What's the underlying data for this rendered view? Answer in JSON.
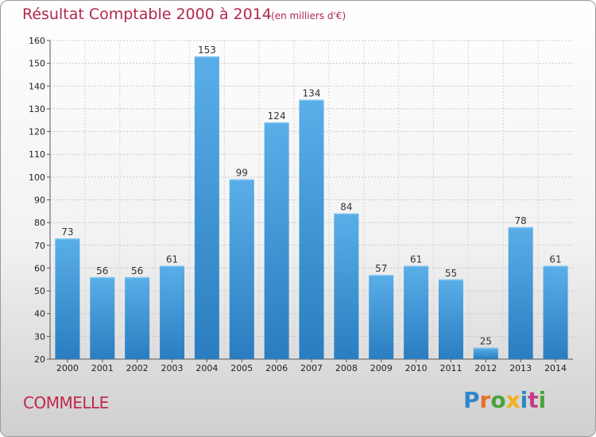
{
  "header": {
    "title": "Résultat Comptable 2000 à 2014",
    "subtitle": "(en milliers d'€)"
  },
  "footer": {
    "commune": "COMMELLE",
    "logo_letters": [
      "P",
      "r",
      "o",
      "x",
      "i",
      "t",
      "i"
    ]
  },
  "chart_data": {
    "type": "bar",
    "title": "Résultat Comptable 2000 à 2014",
    "subtitle": "(en milliers d'€)",
    "categories": [
      "2000",
      "2001",
      "2002",
      "2003",
      "2004",
      "2005",
      "2006",
      "2007",
      "2008",
      "2009",
      "2010",
      "2011",
      "2012",
      "2013",
      "2014"
    ],
    "values": [
      73,
      56,
      56,
      61,
      153,
      99,
      124,
      134,
      84,
      57,
      61,
      55,
      25,
      78,
      61
    ],
    "ylim": [
      20,
      160
    ],
    "yticks": [
      20,
      30,
      40,
      50,
      60,
      70,
      80,
      90,
      100,
      110,
      120,
      130,
      140,
      150,
      160
    ],
    "grid": true,
    "bar_color": "#4a9fe0",
    "bar_color_dark": "#2a7dc0",
    "data_labels": true
  }
}
